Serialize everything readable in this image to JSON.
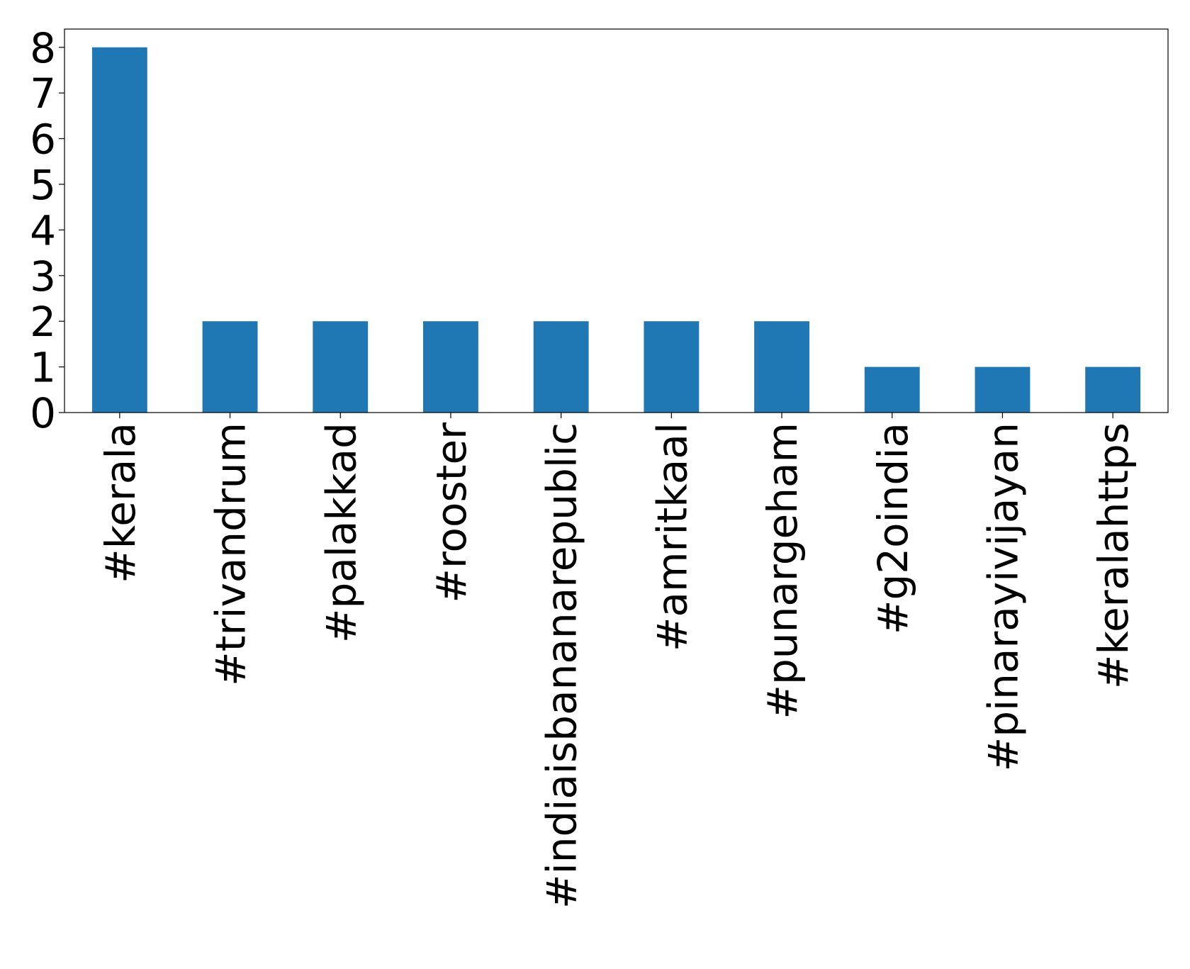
{
  "chart_data": {
    "type": "bar",
    "categories": [
      "#kerala",
      "#trivandrum",
      "#palakkad",
      "#rooster",
      "#indiaisbananarepublic",
      "#amritkaal",
      "#punargeham",
      "#g2oindia",
      "#pinarayivijayan",
      "#keralahttps"
    ],
    "values": [
      8,
      2,
      2,
      2,
      2,
      2,
      2,
      1,
      1,
      1
    ],
    "color": "#1f77b4",
    "ylim": [
      0,
      8.4
    ],
    "yticks": [
      0,
      1,
      2,
      3,
      4,
      5,
      6,
      7,
      8
    ],
    "grid": false
  }
}
